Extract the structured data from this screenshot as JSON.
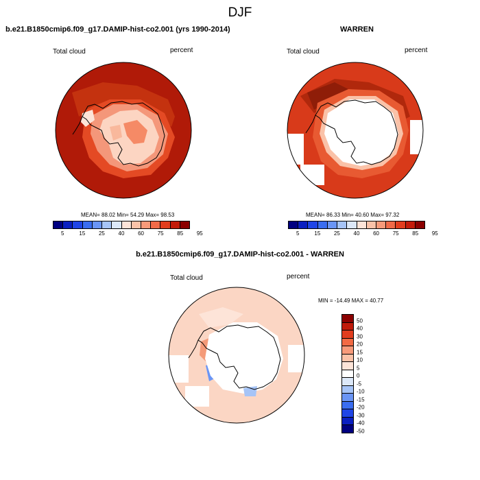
{
  "figure": {
    "title": "DJF"
  },
  "panels": {
    "model": {
      "title": "b.e21.B1850cmip6.f09_g17.DAMIP-hist-co2.001 (yrs 1990-2014)",
      "variable": "Total cloud",
      "units": "percent",
      "stats": "MEAN=  88.02  Min=  54.29  Max=  98.53"
    },
    "obs": {
      "title": "WARREN",
      "variable": "Total cloud",
      "units": "percent",
      "stats": "MEAN=  86.33  Min=  40.60  Max=  97.32"
    },
    "diff": {
      "title": "b.e21.B1850cmip6.f09_g17.DAMIP-hist-co2.001 - WARREN",
      "variable": "Total cloud",
      "units": "percent",
      "stats": "MIN = -14.49 MAX =  40.77"
    }
  },
  "colorbars": {
    "absolute": {
      "colors": [
        "#000080",
        "#0a1fc0",
        "#1f45e6",
        "#3a6df0",
        "#6a95f5",
        "#a6c4f7",
        "#dce8f8",
        "#fde4d8",
        "#fac2a8",
        "#f79a7a",
        "#f06a48",
        "#e23d1e",
        "#c41b0a",
        "#8b0000"
      ],
      "labels": [
        "5",
        "15",
        "25",
        "40",
        "60",
        "75",
        "85",
        "95"
      ]
    },
    "difference": {
      "colors": [
        "#8b0000",
        "#c01a0a",
        "#e23d1e",
        "#f26a44",
        "#f79a7a",
        "#fac2a8",
        "#fde4d8",
        "#ffffff",
        "#dce8f8",
        "#a6c4f7",
        "#6a95f5",
        "#3a6df0",
        "#1f45e6",
        "#0a1fc0",
        "#000080"
      ],
      "labels": [
        "50",
        "40",
        "30",
        "20",
        "15",
        "10",
        "5",
        "0",
        "-5",
        "-10",
        "-15",
        "-20",
        "-30",
        "-40",
        "-50"
      ]
    }
  }
}
